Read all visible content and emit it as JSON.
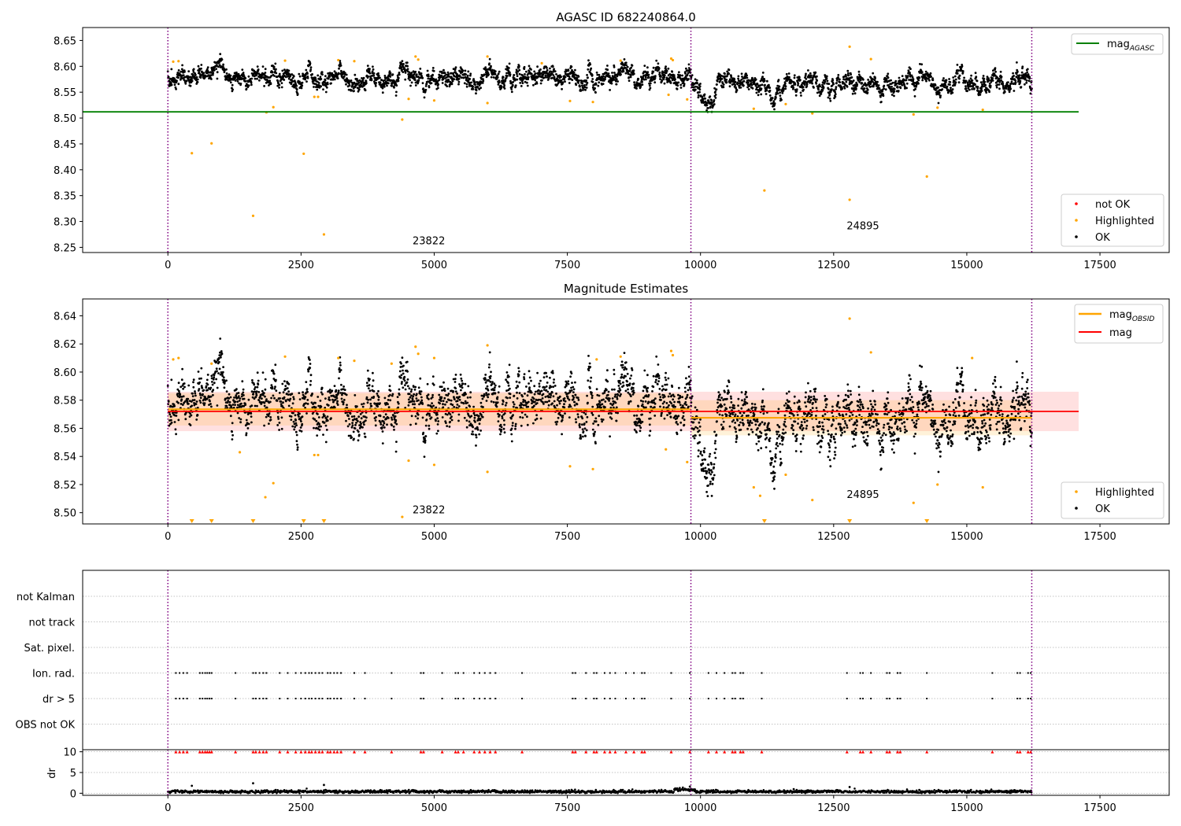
{
  "chart_data": [
    {
      "panel": "top",
      "type": "scatter",
      "title": "AGASC ID 682240864.0",
      "xlabel": "",
      "ylabel": "",
      "xlim": [
        -1600,
        18800
      ],
      "ylim": [
        8.24,
        8.675
      ],
      "xticks": [
        0,
        2500,
        5000,
        7500,
        10000,
        12500,
        15000,
        17500
      ],
      "xtick_labels": [
        "0",
        "2500",
        "5000",
        "7500",
        "10000",
        "12500",
        "15000",
        "17500"
      ],
      "yticks": [
        8.25,
        8.3,
        8.35,
        8.4,
        8.45,
        8.5,
        8.55,
        8.6,
        8.65
      ],
      "ytick_labels": [
        "8.25",
        "8.30",
        "8.35",
        "8.40",
        "8.45",
        "8.50",
        "8.55",
        "8.60",
        "8.65"
      ],
      "obs_boundaries": [
        0,
        9820,
        16220
      ],
      "obs_labels": [
        {
          "text": "23822",
          "x": 4900,
          "y": 8.256
        },
        {
          "text": "24895",
          "x": 13050,
          "y": 8.285
        }
      ],
      "mag_agasc": {
        "name": "mag",
        "subscript": "AGASC",
        "value": 8.512,
        "x": [
          -1600,
          17100
        ],
        "color": "#008000"
      },
      "ok_band": {
        "center": 8.575,
        "spread": 0.018,
        "x_range": [
          0,
          16220
        ]
      },
      "ok_segments": [
        {
          "x0": 0,
          "x1": 9820,
          "mean": 8.577
        },
        {
          "x0": 9820,
          "x1": 16220,
          "mean": 8.567
        }
      ],
      "highlighted": [
        [
          450,
          8.432
        ],
        [
          820,
          8.451
        ],
        [
          1600,
          8.311
        ],
        [
          1980,
          8.521
        ],
        [
          2550,
          8.431
        ],
        [
          2930,
          8.275
        ],
        [
          4400,
          8.497
        ],
        [
          4520,
          8.537
        ],
        [
          5000,
          8.534
        ],
        [
          6000,
          8.529
        ],
        [
          7550,
          8.533
        ],
        [
          7980,
          8.531
        ],
        [
          9400,
          8.545
        ],
        [
          9750,
          8.536
        ],
        [
          11000,
          8.518
        ],
        [
          11200,
          8.36
        ],
        [
          11600,
          8.527
        ],
        [
          12100,
          8.509
        ],
        [
          12800,
          8.638
        ],
        [
          12800,
          8.342
        ],
        [
          13200,
          8.614
        ],
        [
          14000,
          8.507
        ],
        [
          14250,
          8.387
        ],
        [
          14450,
          8.52
        ],
        [
          15300,
          8.516
        ],
        [
          100,
          8.609
        ],
        [
          200,
          8.61
        ],
        [
          2200,
          8.611
        ],
        [
          3200,
          8.612
        ],
        [
          3500,
          8.61
        ],
        [
          4650,
          8.619
        ],
        [
          4700,
          8.613
        ],
        [
          6000,
          8.619
        ],
        [
          8500,
          8.611
        ],
        [
          9450,
          8.615
        ],
        [
          9480,
          8.612
        ],
        [
          2750,
          8.541
        ],
        [
          2820,
          8.541
        ],
        [
          1850,
          8.511
        ],
        [
          7020,
          8.606
        ]
      ],
      "not_ok": [],
      "legend_upper": [
        {
          "label": "mag",
          "sub": "AGASC",
          "color": "#008000"
        }
      ],
      "legend_lower": [
        {
          "label": "not OK",
          "color": "#ff0000"
        },
        {
          "label": "Highlighted",
          "color": "#ffa500"
        },
        {
          "label": "OK",
          "color": "#000000"
        }
      ]
    },
    {
      "panel": "middle",
      "type": "scatter",
      "title": "Magnitude Estimates",
      "xlabel": "",
      "ylabel": "",
      "xlim": [
        -1600,
        18800
      ],
      "ylim": [
        8.492,
        8.652
      ],
      "xticks": [
        0,
        2500,
        5000,
        7500,
        10000,
        12500,
        15000,
        17500
      ],
      "xtick_labels": [
        "0",
        "2500",
        "5000",
        "7500",
        "10000",
        "12500",
        "15000",
        "17500"
      ],
      "yticks": [
        8.5,
        8.52,
        8.54,
        8.56,
        8.58,
        8.6,
        8.62,
        8.64
      ],
      "ytick_labels": [
        "8.50",
        "8.52",
        "8.54",
        "8.56",
        "8.58",
        "8.60",
        "8.62",
        "8.64"
      ],
      "obs_boundaries": [
        0,
        9820,
        16220
      ],
      "obs_labels": [
        {
          "text": "23822",
          "x": 4900,
          "y": 8.4995
        },
        {
          "text": "24895",
          "x": 13050,
          "y": 8.5105
        }
      ],
      "mag": {
        "name": "mag",
        "value": 8.572,
        "band": [
          8.558,
          8.586
        ],
        "x": [
          0,
          17100
        ],
        "color": "#ff0000"
      },
      "mag_obsid": [
        {
          "x0": 0,
          "x1": 9820,
          "value": 8.5735,
          "band": [
            8.562,
            8.585
          ]
        },
        {
          "x0": 9820,
          "x1": 16220,
          "value": 8.5675,
          "band": [
            8.555,
            8.58
          ]
        }
      ],
      "highlighted": [
        [
          100,
          8.609
        ],
        [
          200,
          8.61
        ],
        [
          820,
          8.606
        ],
        [
          1350,
          8.543
        ],
        [
          1830,
          8.511
        ],
        [
          1980,
          8.521
        ],
        [
          2200,
          8.611
        ],
        [
          2750,
          8.541
        ],
        [
          2820,
          8.541
        ],
        [
          3200,
          8.61
        ],
        [
          3500,
          8.608
        ],
        [
          4200,
          8.606
        ],
        [
          4400,
          8.497
        ],
        [
          4520,
          8.537
        ],
        [
          4650,
          8.618
        ],
        [
          4700,
          8.613
        ],
        [
          5000,
          8.534
        ],
        [
          5000,
          8.61
        ],
        [
          6000,
          8.529
        ],
        [
          6000,
          8.619
        ],
        [
          7550,
          8.533
        ],
        [
          7980,
          8.531
        ],
        [
          8050,
          8.609
        ],
        [
          8500,
          8.611
        ],
        [
          9350,
          8.545
        ],
        [
          9450,
          8.615
        ],
        [
          9480,
          8.612
        ],
        [
          9750,
          8.536
        ],
        [
          11000,
          8.518
        ],
        [
          11120,
          8.512
        ],
        [
          11600,
          8.527
        ],
        [
          12100,
          8.509
        ],
        [
          12800,
          8.638
        ],
        [
          13200,
          8.614
        ],
        [
          14000,
          8.507
        ],
        [
          14450,
          8.52
        ],
        [
          15100,
          8.61
        ],
        [
          15300,
          8.518
        ]
      ],
      "off_scale_markers": [
        450,
        820,
        1600,
        2550,
        2930,
        11200,
        12800,
        14250
      ],
      "legend_upper": [
        {
          "label": "mag",
          "sub": "OBSID",
          "color": "#ffa500"
        },
        {
          "label": "mag",
          "sub": "",
          "color": "#ff0000"
        }
      ],
      "legend_lower": [
        {
          "label": "Highlighted",
          "color": "#ffa500"
        },
        {
          "label": "OK",
          "color": "#000000"
        }
      ]
    },
    {
      "panel": "flags",
      "type": "scatter",
      "xlim": [
        -1600,
        18800
      ],
      "categories": [
        "not Kalman",
        "not track",
        "Sat. pixel.",
        "Ion. rad.",
        "dr > 5",
        "OBS not OK"
      ],
      "obs_boundaries": [
        0,
        9820,
        16220
      ],
      "flag_x": [
        150,
        220,
        290,
        360,
        600,
        650,
        700,
        740,
        780,
        820,
        1270,
        1600,
        1650,
        1720,
        1790,
        1850,
        2100,
        2250,
        2400,
        2500,
        2580,
        2650,
        2700,
        2770,
        2840,
        2900,
        3000,
        3050,
        3120,
        3180,
        3250,
        3500,
        3700,
        4200,
        4750,
        4800,
        5150,
        5400,
        5450,
        5550,
        5750,
        5850,
        5950,
        6050,
        6150,
        6650,
        7600,
        7650,
        7850,
        8000,
        8050,
        8200,
        8300,
        8400,
        8600,
        8750,
        8900,
        8950,
        9450,
        9800,
        10150,
        10300,
        10450,
        10600,
        10650,
        10750,
        10800,
        11150,
        12750,
        13000,
        13050,
        13200,
        13500,
        13550,
        13700,
        13750,
        14250,
        15480,
        15950,
        16000,
        16150,
        16200
      ],
      "flag_rows": [
        "Ion. rad.",
        "dr > 5"
      ]
    },
    {
      "panel": "dr",
      "type": "scatter",
      "ylabel": "dr",
      "xlim": [
        -1600,
        18800
      ],
      "ylim": [
        -0.5,
        10.5
      ],
      "xticks": [
        0,
        2500,
        5000,
        7500,
        10000,
        12500,
        15000,
        17500
      ],
      "xtick_labels": [
        "0",
        "2500",
        "5000",
        "7500",
        "10000",
        "12500",
        "15000",
        "17500"
      ],
      "yticks": [
        0,
        5,
        10
      ],
      "ytick_labels": [
        "0",
        "5",
        "10"
      ],
      "obs_boundaries": [
        0,
        9820,
        16220
      ],
      "dr_baseline": 0.4,
      "dr_outliers": [
        [
          450,
          1.8
        ],
        [
          1600,
          2.4
        ],
        [
          2930,
          2.0
        ],
        [
          9800,
          1.6
        ],
        [
          12800,
          1.5
        ],
        [
          11750,
          1.0
        ]
      ],
      "clipped_marker_value": 10,
      "clipped_x": [
        150,
        220,
        290,
        360,
        600,
        650,
        700,
        740,
        780,
        820,
        1270,
        1600,
        1650,
        1720,
        1790,
        1850,
        2100,
        2250,
        2400,
        2500,
        2580,
        2650,
        2700,
        2770,
        2840,
        2900,
        3000,
        3050,
        3120,
        3180,
        3250,
        3500,
        3700,
        4200,
        4750,
        4800,
        5150,
        5400,
        5450,
        5550,
        5750,
        5850,
        5950,
        6050,
        6150,
        6650,
        7600,
        7650,
        7850,
        8000,
        8050,
        8200,
        8300,
        8400,
        8600,
        8750,
        8900,
        8950,
        9450,
        9800,
        10150,
        10300,
        10450,
        10600,
        10650,
        10750,
        10800,
        11150,
        12750,
        13000,
        13050,
        13200,
        13500,
        13550,
        13700,
        13750,
        14250,
        15480,
        15950,
        16000,
        16150,
        16200
      ]
    }
  ],
  "colors": {
    "ok": "#000000",
    "highlighted": "#ffa500",
    "not_ok": "#ff0000",
    "boundary": "#800080",
    "agasc": "#008000",
    "mag": "#ff0000",
    "mag_obsid": "#ffa500",
    "grid": "#b0b0b0"
  }
}
